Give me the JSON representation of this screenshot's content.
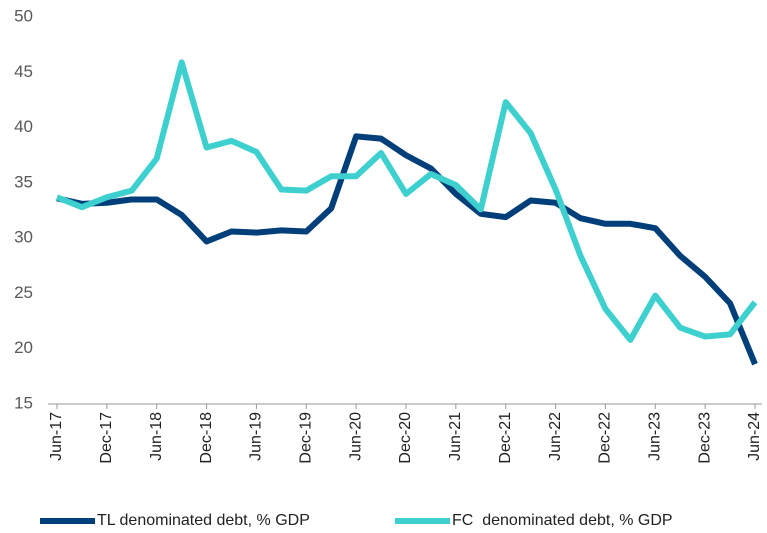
{
  "chart_data": {
    "type": "line",
    "categories": [
      "Jun-17",
      null,
      "Dec-17",
      null,
      "Jun-18",
      null,
      "Dec-18",
      null,
      "Jun-19",
      null,
      "Dec-19",
      null,
      "Jun-20",
      null,
      "Dec-20",
      null,
      "Jun-21",
      null,
      "Dec-21",
      null,
      "Jun-22",
      null,
      "Dec-22",
      null,
      "Jun-23",
      null,
      "Dec-23",
      null,
      "Jun-24"
    ],
    "series": [
      {
        "name": "TL denominated debt, % GDP",
        "color": "#003f7a",
        "values": [
          33.6,
          33.1,
          33.2,
          33.5,
          33.5,
          32.1,
          29.7,
          30.6,
          30.5,
          30.7,
          30.6,
          32.7,
          39.2,
          39.0,
          37.5,
          36.3,
          34.0,
          32.2,
          31.9,
          33.4,
          33.2,
          31.8,
          31.3,
          31.3,
          30.9,
          28.4,
          26.5,
          24.1,
          18.6
        ]
      },
      {
        "name": "FC  denominated debt, % GDP",
        "color": "#3ecfcf",
        "values": [
          33.7,
          32.8,
          33.7,
          34.3,
          37.2,
          45.9,
          38.2,
          38.8,
          37.8,
          34.4,
          34.3,
          35.6,
          35.6,
          37.7,
          34.0,
          35.8,
          34.8,
          32.6,
          42.3,
          39.5,
          34.4,
          28.4,
          23.6,
          20.8,
          24.8,
          21.9,
          21.1,
          21.3,
          24.2
        ]
      }
    ],
    "ylim": [
      15,
      50
    ],
    "yticks": [
      15,
      20,
      25,
      30,
      35,
      40,
      45,
      50
    ],
    "grid": false,
    "legend": "bottom"
  }
}
